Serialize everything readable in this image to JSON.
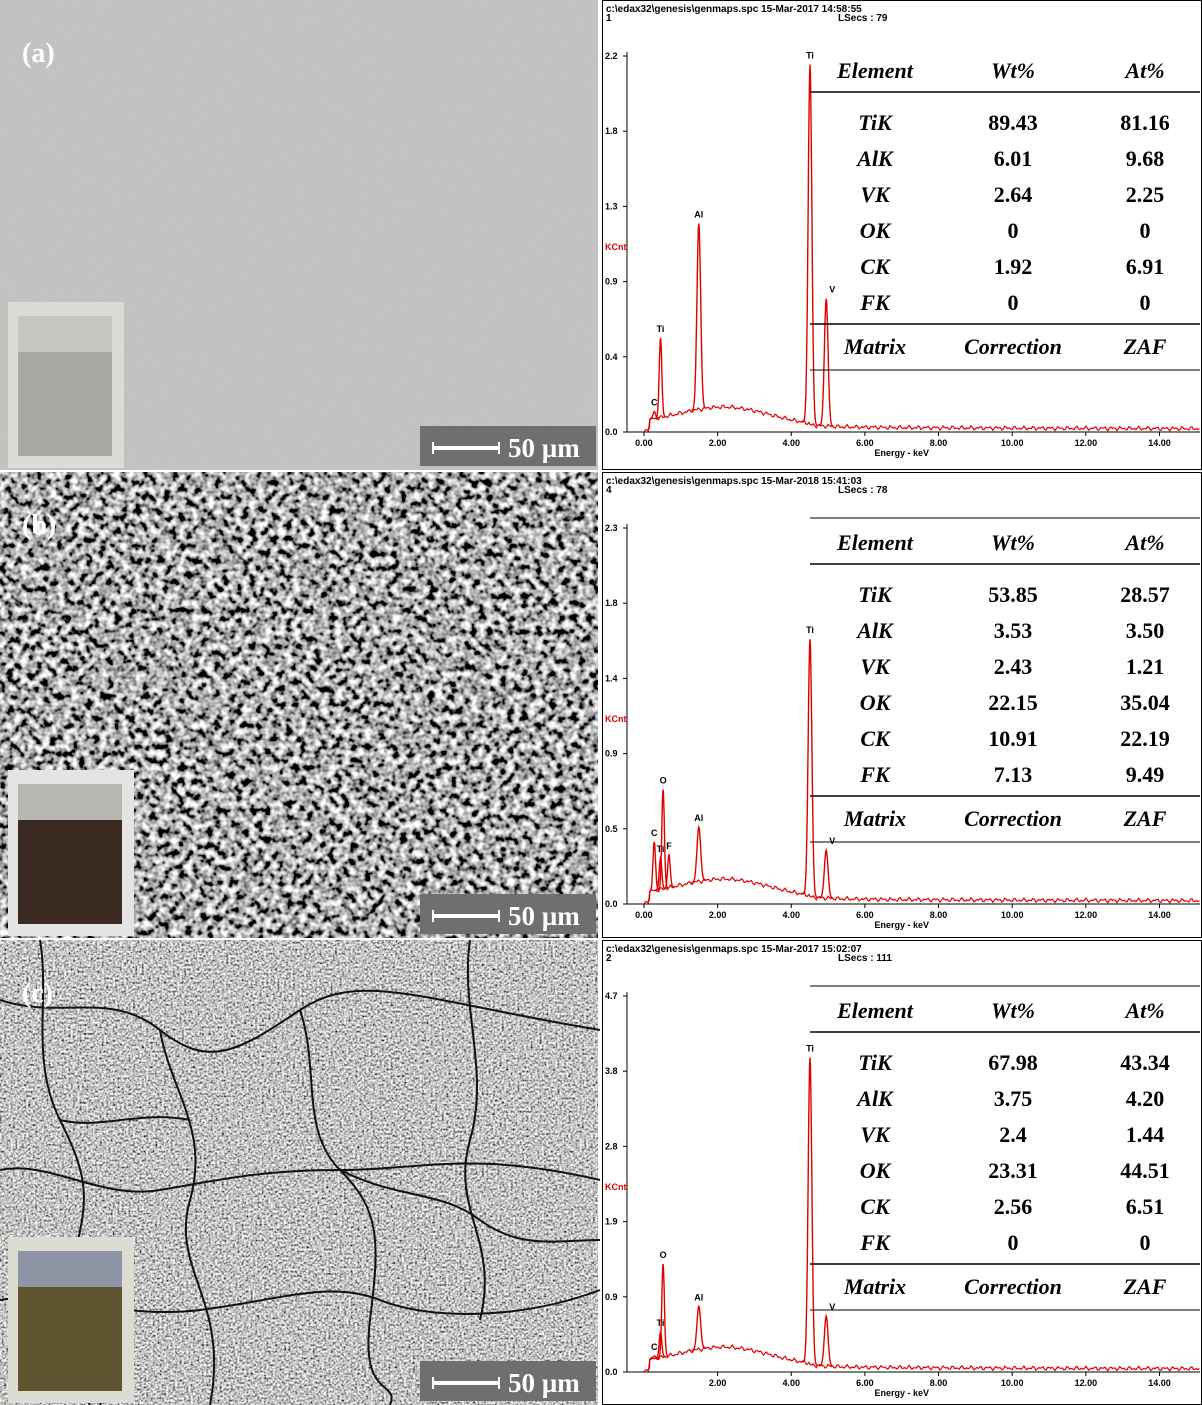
{
  "panels": [
    {
      "label": "(a)",
      "scale_bar": "50 µm",
      "spectrum": {
        "header_line": "c:\\edax32\\genesis\\genmaps.spc  15-Mar-2017 14:58:55",
        "spectrum_no": "1",
        "lsecs": "LSecs : 79",
        "y_label": "KCnt",
        "x_label": "Energy - keV",
        "ylim": [
          0,
          2.2
        ],
        "yticks": [
          {
            "value": 0,
            "label": "0.0"
          },
          {
            "value": 0.44,
            "label": "0.4"
          },
          {
            "value": 0.88,
            "label": "0.9"
          },
          {
            "value": 1.32,
            "label": "1.3"
          },
          {
            "value": 1.76,
            "label": "1.8"
          },
          2.2
        ],
        "xlim": [
          -0.46,
          15.1
        ],
        "xticks": [
          {
            "value": 0,
            "label": "0.00"
          },
          {
            "value": 2,
            "label": "2.00"
          },
          {
            "value": 4,
            "label": "4.00"
          },
          {
            "value": 6,
            "label": "6.00"
          },
          {
            "value": 8,
            "label": "8.00"
          },
          {
            "value": 10,
            "label": "10.00"
          },
          {
            "value": 12,
            "label": "12.00"
          },
          {
            "value": 14,
            "label": "14.00"
          }
        ],
        "peaks": [
          {
            "label": "C",
            "energy": 0.28,
            "kcnt": 0.12
          },
          {
            "label": "Ti",
            "energy": 0.45,
            "kcnt": 0.55
          },
          {
            "label": "Al",
            "energy": 1.49,
            "kcnt": 1.22
          },
          {
            "label": "Ti",
            "energy": 4.51,
            "kcnt": 2.15
          },
          {
            "label": "V",
            "energy": 4.95,
            "kcnt": 0.78
          }
        ]
      },
      "table": {
        "header": [
          "Element",
          "Wt%",
          "At%"
        ],
        "rows": [
          [
            "TiK",
            "89.43",
            "81.16"
          ],
          [
            "AlK",
            "6.01",
            "9.68"
          ],
          [
            "VK",
            "2.64",
            "2.25"
          ],
          [
            "OK",
            "0",
            "0"
          ],
          [
            "CK",
            "1.92",
            "6.91"
          ],
          [
            "FK",
            "0",
            "0"
          ]
        ],
        "footer": [
          "Matrix",
          "Correction",
          "ZAF"
        ]
      }
    },
    {
      "label": "(b)",
      "scale_bar": "50 µm",
      "spectrum": {
        "header_line": "c:\\edax32\\genesis\\genmaps.spc  15-Mar-2018 15:41:03",
        "spectrum_no": "4",
        "lsecs": "LSecs : 78",
        "y_label": "KCnt",
        "x_label": "Energy - keV",
        "ylim": [
          0,
          2.3
        ],
        "yticks": [
          {
            "value": 0,
            "label": "0.0"
          },
          {
            "value": 0.46,
            "label": "0.5"
          },
          {
            "value": 0.92,
            "label": "0.9"
          },
          {
            "value": 1.38,
            "label": "1.4"
          },
          {
            "value": 1.84,
            "label": "1.8"
          },
          2.3
        ],
        "xlim": [
          -0.46,
          15.1
        ],
        "xticks": [
          {
            "value": 0,
            "label": "0.00"
          },
          {
            "value": 2,
            "label": "2.00"
          },
          {
            "value": 4,
            "label": "4.00"
          },
          {
            "value": 6,
            "label": "6.00"
          },
          {
            "value": 8,
            "label": "8.00"
          },
          {
            "value": 10,
            "label": "10.00"
          },
          {
            "value": 12,
            "label": "12.00"
          },
          {
            "value": 14,
            "label": "14.00"
          }
        ],
        "peaks": [
          {
            "label": "C",
            "energy": 0.28,
            "kcnt": 0.38
          },
          {
            "label": "Ti",
            "energy": 0.45,
            "kcnt": 0.28
          },
          {
            "label": "O",
            "energy": 0.52,
            "kcnt": 0.7
          },
          {
            "label": "F",
            "energy": 0.68,
            "kcnt": 0.3
          },
          {
            "label": "Al",
            "energy": 1.49,
            "kcnt": 0.47
          },
          {
            "label": "Ti",
            "energy": 4.51,
            "kcnt": 1.62
          },
          {
            "label": "V",
            "energy": 4.95,
            "kcnt": 0.33
          }
        ]
      },
      "table": {
        "header": [
          "Element",
          "Wt%",
          "At%"
        ],
        "rows": [
          [
            "TiK",
            "53.85",
            "28.57"
          ],
          [
            "AlK",
            "3.53",
            "3.50"
          ],
          [
            "VK",
            "2.43",
            "1.21"
          ],
          [
            "OK",
            "22.15",
            "35.04"
          ],
          [
            "CK",
            "10.91",
            "22.19"
          ],
          [
            "FK",
            "7.13",
            "9.49"
          ]
        ],
        "footer": [
          "Matrix",
          "Correction",
          "ZAF"
        ]
      }
    },
    {
      "label": "(c)",
      "scale_bar": "50 µm",
      "spectrum": {
        "header_line": "c:\\edax32\\genesis\\genmaps.spc  15-Mar-2017 15:02:07",
        "spectrum_no": "2",
        "lsecs": "LSecs : 111",
        "y_label": "KCnt",
        "x_label": "Energy - keV",
        "ylim": [
          0,
          4.7
        ],
        "yticks": [
          {
            "value": 0,
            "label": "0.0"
          },
          {
            "value": 0.94,
            "label": "0.9"
          },
          {
            "value": 1.88,
            "label": "1.9"
          },
          {
            "value": 2.82,
            "label": "2.8"
          },
          {
            "value": 3.76,
            "label": "3.8"
          },
          4.7
        ],
        "xlim": [
          -0.46,
          15.1
        ],
        "xticks": [
          {
            "value": 2,
            "label": "2.00"
          },
          {
            "value": 4,
            "label": "4.00"
          },
          {
            "value": 6,
            "label": "6.00"
          },
          {
            "value": 8,
            "label": "8.00"
          },
          {
            "value": 10,
            "label": "10.00"
          },
          {
            "value": 12,
            "label": "12.00"
          },
          {
            "value": 14,
            "label": "14.00"
          }
        ],
        "peaks": [
          {
            "label": "C",
            "energy": 0.28,
            "kcnt": 0.2
          },
          {
            "label": "Ti",
            "energy": 0.45,
            "kcnt": 0.5
          },
          {
            "label": "O",
            "energy": 0.52,
            "kcnt": 1.35
          },
          {
            "label": "Al",
            "energy": 1.49,
            "kcnt": 0.82
          },
          {
            "label": "Ti",
            "energy": 4.51,
            "kcnt": 3.93
          },
          {
            "label": "V",
            "energy": 4.95,
            "kcnt": 0.7
          }
        ]
      },
      "table": {
        "header": [
          "Element",
          "Wt%",
          "At%"
        ],
        "rows": [
          [
            "TiK",
            "67.98",
            "43.34"
          ],
          [
            "AlK",
            "3.75",
            "4.20"
          ],
          [
            "VK",
            "2.4",
            "1.44"
          ],
          [
            "OK",
            "23.31",
            "44.51"
          ],
          [
            "CK",
            "2.56",
            "6.51"
          ],
          [
            "FK",
            "0",
            "0"
          ]
        ],
        "footer": [
          "Matrix",
          "Correction",
          "ZAF"
        ]
      }
    }
  ]
}
